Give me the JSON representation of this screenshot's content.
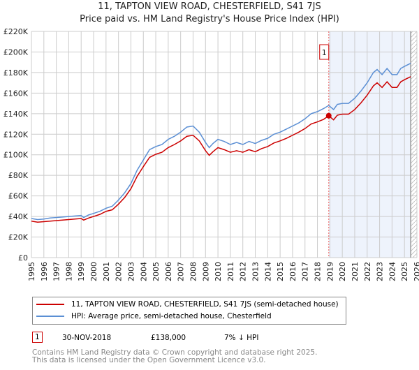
{
  "title": "11, TAPTON VIEW ROAD, CHESTERFIELD, S41 7JS",
  "subtitle": "Price paid vs. HM Land Registry's House Price Index (HPI)",
  "chart_data": {
    "type": "line",
    "title": "11, TAPTON VIEW ROAD, CHESTERFIELD, S41 7JS",
    "subtitle": "Price paid vs. HM Land Registry's House Price Index (HPI)",
    "xlim": [
      1995,
      2026
    ],
    "ylim": [
      0,
      220000
    ],
    "x_ticks": [
      "1995",
      "1996",
      "1997",
      "1998",
      "1999",
      "2000",
      "2001",
      "2002",
      "2003",
      "2004",
      "2005",
      "2006",
      "2007",
      "2008",
      "2009",
      "2010",
      "2011",
      "2012",
      "2013",
      "2014",
      "2015",
      "2016",
      "2017",
      "2018",
      "2019",
      "2020",
      "2021",
      "2022",
      "2023",
      "2024",
      "2025",
      "2026"
    ],
    "y_ticks": [
      "£0",
      "£20K",
      "£40K",
      "£60K",
      "£80K",
      "£100K",
      "£120K",
      "£140K",
      "£160K",
      "£180K",
      "£200K",
      "£220K"
    ],
    "grid": true,
    "x": [
      1995,
      1995.5,
      1996,
      1996.5,
      1997,
      1997.5,
      1998,
      1998.5,
      1999,
      1999.2,
      1999.6,
      2000,
      2000.5,
      2001,
      2001.5,
      2002,
      2002.5,
      2003,
      2003.5,
      2004,
      2004.5,
      2005,
      2005.5,
      2006,
      2006.5,
      2007,
      2007.5,
      2008,
      2008.5,
      2009,
      2009.3,
      2009.6,
      2010,
      2010.5,
      2011,
      2011.5,
      2012,
      2012.5,
      2013,
      2013.5,
      2014,
      2014.5,
      2015,
      2015.5,
      2016,
      2016.5,
      2017,
      2017.5,
      2018,
      2018.5,
      2018.91,
      2019.3,
      2019.6,
      2020,
      2020.5,
      2021,
      2021.5,
      2022,
      2022.5,
      2022.8,
      2023.2,
      2023.6,
      2024,
      2024.4,
      2024.7,
      2025,
      2025.5
    ],
    "series": [
      {
        "name": "11, TAPTON VIEW ROAD, CHESTERFIELD, S41 7JS (semi-detached house)",
        "color": "#cc0000",
        "values": [
          35500,
          34500,
          35000,
          35500,
          36000,
          36500,
          37000,
          37500,
          38000,
          36500,
          38500,
          40000,
          42000,
          45000,
          46500,
          52000,
          58500,
          67000,
          79000,
          88500,
          97500,
          100500,
          102500,
          107000,
          110000,
          113500,
          118000,
          119000,
          113500,
          104000,
          99500,
          103000,
          107000,
          105000,
          102500,
          104000,
          102500,
          105000,
          103000,
          106000,
          108000,
          111500,
          113500,
          116000,
          119000,
          122000,
          125500,
          130000,
          132000,
          134500,
          138000,
          134000,
          138500,
          139500,
          139500,
          144000,
          150500,
          158000,
          167000,
          170000,
          165500,
          171000,
          165500,
          165500,
          171000,
          173000,
          176000
        ]
      },
      {
        "name": "HPI: Average price, semi-detached house, Chesterfield",
        "color": "#5b8fd4",
        "values": [
          38000,
          37000,
          37500,
          38500,
          39000,
          39500,
          40000,
          40500,
          41000,
          39000,
          41500,
          43000,
          45000,
          48000,
          50000,
          56000,
          63000,
          72000,
          85000,
          95000,
          105000,
          108000,
          110000,
          115000,
          118000,
          122000,
          127000,
          128000,
          122000,
          112000,
          107000,
          111000,
          115000,
          113000,
          110000,
          112000,
          110000,
          113000,
          111000,
          114000,
          116000,
          120000,
          122000,
          125000,
          128000,
          131000,
          135000,
          140000,
          142000,
          145000,
          148000,
          144000,
          149000,
          150000,
          150000,
          155000,
          162000,
          170000,
          180000,
          183000,
          178000,
          184000,
          178000,
          178000,
          184000,
          186000,
          189000
        ]
      }
    ],
    "sale_marker": {
      "label": "1",
      "x": 2018.91,
      "value": 138000
    },
    "legend_position": "below"
  },
  "legend": {
    "red": "11, TAPTON VIEW ROAD, CHESTERFIELD, S41 7JS (semi-detached house)",
    "blue": "HPI: Average price, semi-detached house, Chesterfield"
  },
  "sale": {
    "num": "1",
    "date": "30-NOV-2018",
    "price": "£138,000",
    "diff": "7% ↓ HPI"
  },
  "footer": {
    "line1": "Contains HM Land Registry data © Crown copyright and database right 2025.",
    "line2": "This data is licensed under the Open Government Licence v3.0."
  }
}
